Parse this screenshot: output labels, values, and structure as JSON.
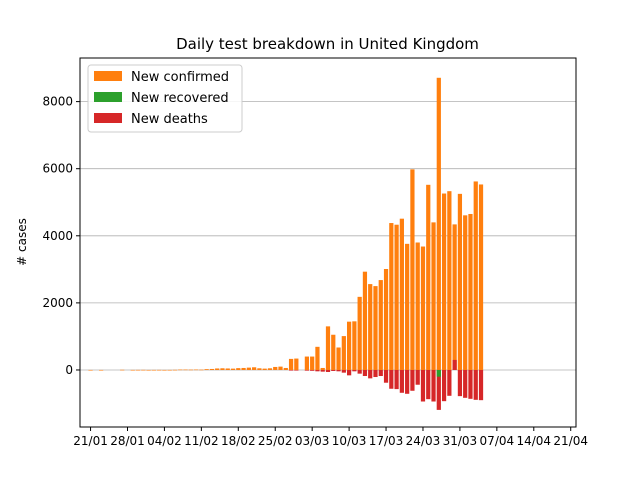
{
  "chart_data": {
    "type": "bar",
    "title": "Daily test breakdown in United Kingdom",
    "ylabel": "# cases",
    "xlabel": "",
    "start_date": "2020-01-21",
    "xlim_days": [
      -2,
      92
    ],
    "ylim": [
      -1700,
      9300
    ],
    "yticks": [
      0,
      2000,
      4000,
      6000,
      8000
    ],
    "xticks": [
      {
        "day": 0,
        "label": "21/01"
      },
      {
        "day": 7,
        "label": "28/01"
      },
      {
        "day": 14,
        "label": "04/02"
      },
      {
        "day": 21,
        "label": "11/02"
      },
      {
        "day": 28,
        "label": "18/02"
      },
      {
        "day": 35,
        "label": "25/02"
      },
      {
        "day": 42,
        "label": "03/03"
      },
      {
        "day": 49,
        "label": "10/03"
      },
      {
        "day": 56,
        "label": "17/03"
      },
      {
        "day": 63,
        "label": "24/03"
      },
      {
        "day": 70,
        "label": "31/03"
      },
      {
        "day": 77,
        "label": "07/04"
      },
      {
        "day": 84,
        "label": "14/04"
      },
      {
        "day": 91,
        "label": "21/04"
      }
    ],
    "grid": "y",
    "legend": "top-left",
    "series": [
      {
        "name": "New confirmed",
        "color": "#ff7f0e",
        "values": [
          0,
          0,
          0,
          0,
          0,
          0,
          0,
          0,
          0,
          0,
          2,
          0,
          0,
          0,
          0,
          0,
          0,
          1,
          0,
          0,
          1,
          0,
          1,
          0,
          0,
          0,
          0,
          0,
          0,
          0,
          0,
          0,
          0,
          0,
          0,
          0,
          0,
          0,
          4,
          0,
          0,
          1,
          0,
          0,
          0,
          1,
          0,
          1,
          0,
          0,
          0,
          6,
          0,
          2,
          3,
          4,
          1,
          2,
          3,
          1,
          2,
          5,
          12,
          12,
          10,
          13,
          10,
          25,
          30,
          45,
          50,
          45,
          40,
          55,
          60,
          70,
          80,
          50,
          40,
          50,
          90,
          100,
          60,
          330,
          340,
          0,
          400,
          400,
          690,
          60,
          1300,
          1050,
          670,
          1010,
          1440,
          1450,
          2180,
          2930,
          2560,
          2500,
          2680,
          3010,
          4380,
          4330,
          4510,
          3760,
          5980,
          3800,
          3680,
          5520,
          4400,
          8710,
          5260,
          5330,
          4340,
          5250,
          4610,
          4650,
          5620,
          5530
        ],
        "offset_days": -45
      },
      {
        "name": "New recovered",
        "color": "#2ca02c",
        "values": [
          0,
          0,
          0,
          0,
          0,
          0,
          0,
          0,
          0,
          0,
          0,
          0,
          0,
          0,
          0,
          0,
          0,
          0,
          0,
          0,
          0,
          0,
          0,
          0,
          0,
          0,
          0,
          0,
          0,
          0,
          0,
          0,
          0,
          0,
          0,
          0,
          0,
          0,
          0,
          0,
          0,
          0,
          0,
          0,
          0,
          0,
          0,
          0,
          0,
          0,
          0,
          0,
          0,
          0,
          0,
          0,
          0,
          0,
          0,
          0,
          0,
          0,
          0,
          0,
          0,
          0,
          0,
          0,
          0,
          0,
          0,
          0,
          0,
          0,
          0,
          0,
          0,
          0,
          0,
          0,
          0,
          0,
          0,
          0,
          0,
          0,
          0,
          0,
          0,
          0,
          0,
          0,
          0,
          0,
          0,
          0,
          0,
          0,
          0,
          0,
          0,
          0,
          0,
          0,
          0,
          0,
          0,
          0,
          0,
          0,
          0,
          -200,
          0,
          0,
          0,
          0,
          0,
          0,
          0,
          0
        ],
        "offset_days": -45
      },
      {
        "name": "New deaths",
        "color": "#d62728",
        "values": [
          0,
          0,
          0,
          0,
          0,
          0,
          0,
          0,
          0,
          0,
          0,
          0,
          0,
          0,
          0,
          0,
          0,
          0,
          0,
          0,
          0,
          0,
          0,
          0,
          0,
          0,
          0,
          0,
          0,
          0,
          0,
          0,
          0,
          0,
          0,
          0,
          0,
          0,
          0,
          0,
          0,
          0,
          0,
          0,
          0,
          0,
          0,
          0,
          0,
          0,
          0,
          0,
          0,
          0,
          0,
          0,
          0,
          0,
          0,
          0,
          0,
          0,
          0,
          0,
          0,
          0,
          0,
          0,
          0,
          0,
          0,
          0,
          0,
          0,
          0,
          0,
          0,
          0,
          0,
          0,
          0,
          0,
          0,
          -10,
          -15,
          0,
          -20,
          -25,
          -40,
          -50,
          -60,
          -30,
          -40,
          -80,
          -160,
          -40,
          -110,
          -180,
          -250,
          -210,
          -180,
          -380,
          -560,
          -570,
          -680,
          -710,
          -620,
          -440,
          -940,
          -870,
          -940,
          -1190,
          -930,
          -770,
          300,
          -780,
          -830,
          -860,
          -890,
          -900
        ],
        "offset_days": -45
      }
    ]
  }
}
